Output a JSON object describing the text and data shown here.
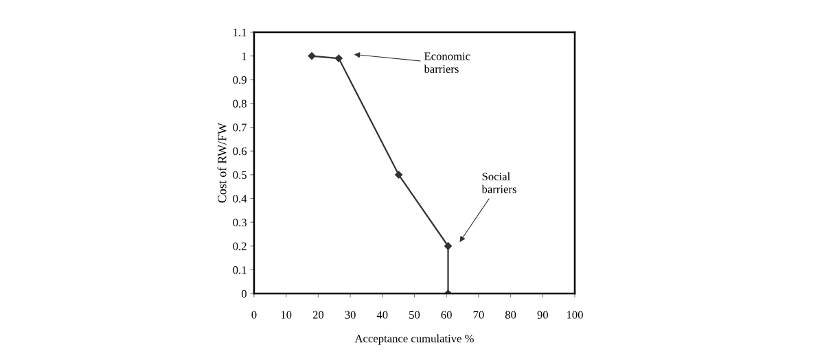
{
  "chart_data": {
    "type": "line",
    "xlabel": "Acceptance cumulative %",
    "ylabel": "Cost of RW/FW",
    "x": [
      18,
      26.4,
      45.1,
      60.5,
      60.5
    ],
    "series": [
      {
        "color": "#333333",
        "values": [
          1.0,
          0.99,
          0.5,
          0.2,
          0
        ]
      }
    ],
    "xlim": [
      0,
      100
    ],
    "xticks": [
      0,
      10,
      20,
      30,
      40,
      50,
      60,
      70,
      80,
      90,
      100
    ],
    "ylim": [
      0,
      1.1
    ],
    "yticks": [
      0,
      0.1,
      0.2,
      0.3,
      0.4,
      0.5,
      0.6,
      0.7,
      0.8,
      0.9,
      {
        "value": 1,
        "label": "1"
      },
      1.1
    ],
    "marker": "diamond",
    "line_style": "solid",
    "grid": false,
    "legend": false,
    "annotations": [
      "Economic\nbarriers",
      "Social\nbarriers"
    ]
  }
}
